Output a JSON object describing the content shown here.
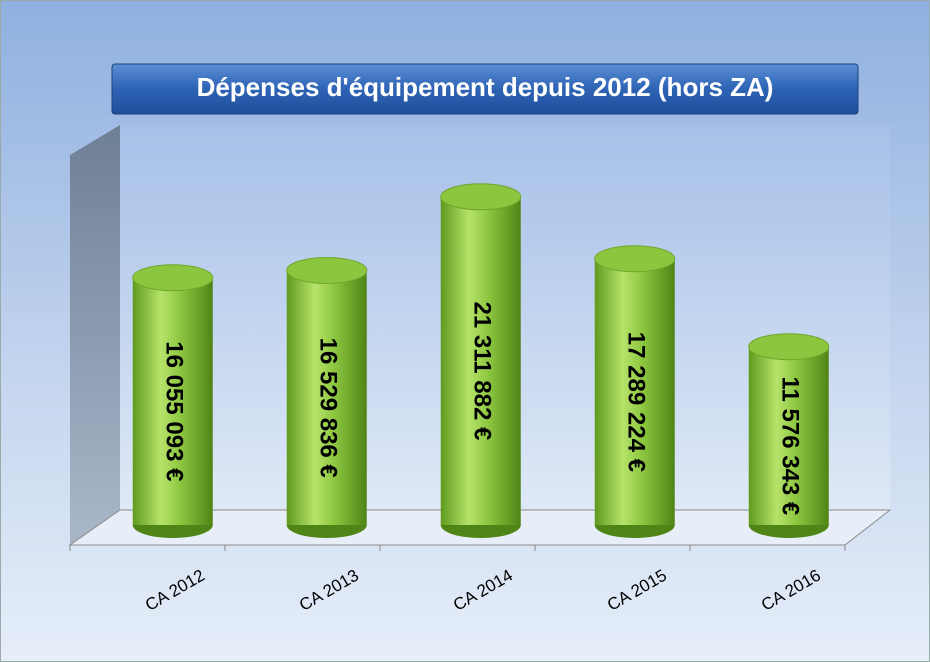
{
  "chart_data": {
    "type": "bar3d",
    "title": "Dépenses d'équipement depuis 2012  (hors ZA)",
    "categories": [
      "CA 2012",
      "CA 2013",
      "CA 2014",
      "CA 2015",
      "CA 2016"
    ],
    "values": [
      16055093,
      16529836,
      21311882,
      17289224,
      11576343
    ],
    "value_labels": [
      "16 055 093 €",
      "16 529 836 €",
      "21 311 882 €",
      "17 289 224 €",
      "11 576 343 €"
    ],
    "color": "#8cc63f",
    "ylim": [
      0,
      25000000
    ]
  }
}
